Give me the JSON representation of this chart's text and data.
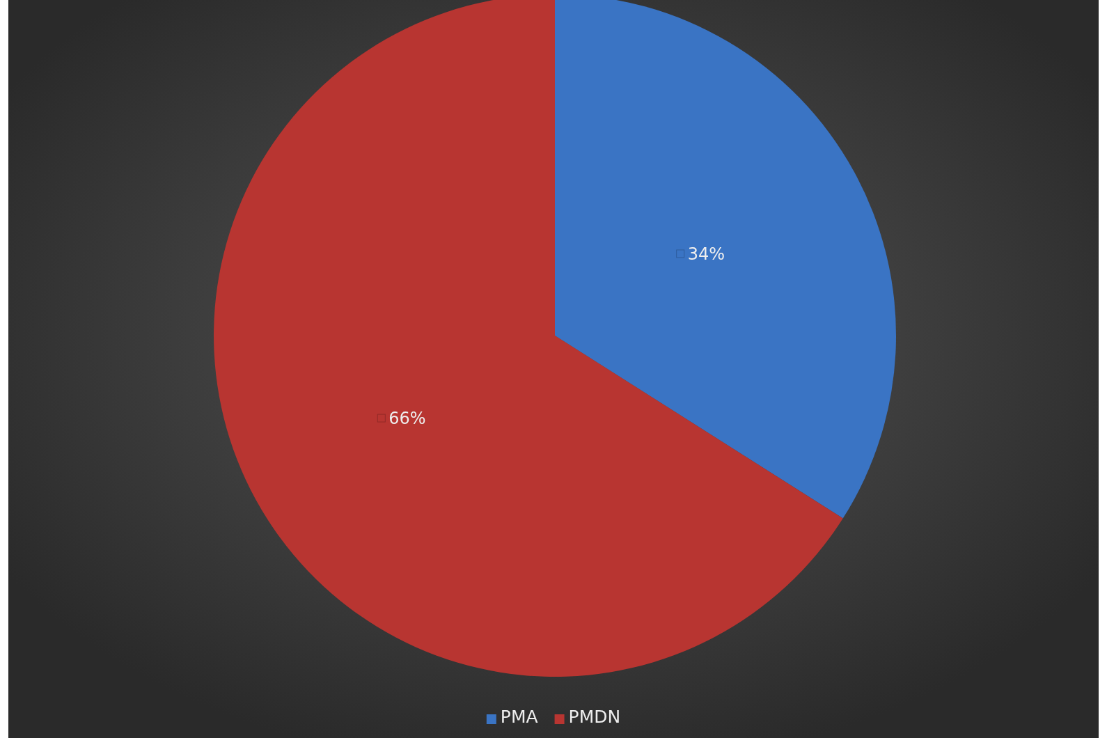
{
  "chart_data": {
    "type": "pie",
    "categories": [
      "PMA",
      "PMDN"
    ],
    "values": [
      34,
      66
    ],
    "colors": [
      "#3a74c4",
      "#b83531"
    ],
    "value_labels": [
      "34%",
      "66%"
    ],
    "legend": "bottom"
  }
}
